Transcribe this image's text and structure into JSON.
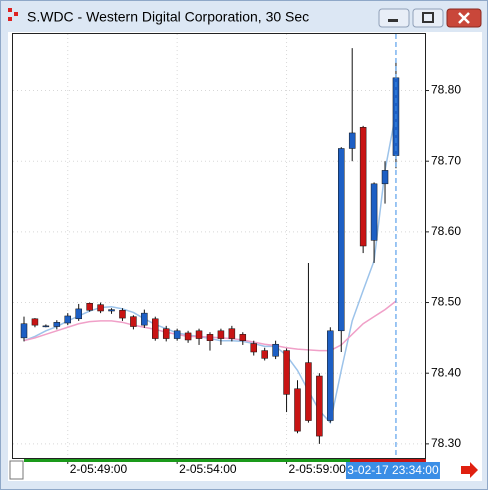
{
  "window_title": "S.WDC - Western Digital Corporation, 30 Sec",
  "chart_data": {
    "type": "candlestick",
    "categories": [
      null,
      null,
      null,
      null,
      "2-05:49:00",
      null,
      null,
      null,
      null,
      null,
      null,
      null,
      null,
      null,
      "2-05:54:00",
      null,
      null,
      null,
      null,
      null,
      null,
      null,
      null,
      null,
      "2-05:59:00",
      null,
      null,
      null,
      null,
      null,
      null,
      null,
      null,
      null,
      "3-02-17 23:34:00"
    ],
    "open": [
      78.45,
      78.477,
      78.467,
      78.466,
      78.471,
      78.477,
      78.499,
      78.497,
      78.488,
      78.489,
      78.48,
      78.468,
      78.477,
      78.463,
      78.449,
      78.457,
      78.46,
      78.455,
      78.46,
      78.463,
      78.455,
      78.442,
      78.432,
      78.424,
      78.432,
      78.378,
      78.415,
      78.396,
      78.333,
      78.46,
      78.718,
      78.748,
      78.588,
      78.668,
      78.708
    ],
    "high": [
      78.48,
      78.478,
      78.469,
      78.475,
      78.485,
      78.498,
      78.5,
      78.5,
      78.492,
      78.492,
      78.482,
      78.49,
      78.48,
      78.467,
      78.463,
      78.46,
      78.463,
      78.458,
      78.463,
      78.467,
      78.458,
      78.446,
      78.436,
      78.446,
      78.435,
      78.39,
      78.556,
      78.4,
      78.465,
      78.72,
      78.86,
      78.75,
      78.67,
      78.7,
      78.84
    ],
    "low": [
      78.445,
      78.465,
      78.465,
      78.462,
      78.468,
      78.474,
      78.487,
      78.485,
      78.484,
      78.474,
      78.462,
      78.464,
      78.446,
      78.445,
      78.446,
      78.443,
      78.44,
      78.432,
      78.44,
      78.445,
      78.44,
      78.425,
      78.418,
      78.42,
      78.345,
      78.315,
      78.33,
      78.3,
      78.33,
      78.43,
      78.7,
      78.57,
      78.556,
      78.64,
      78.69
    ],
    "close": [
      78.47,
      78.468,
      78.467,
      78.472,
      78.481,
      78.491,
      78.489,
      78.488,
      78.49,
      78.478,
      78.466,
      78.485,
      78.449,
      78.449,
      78.46,
      78.447,
      78.449,
      78.446,
      78.449,
      78.449,
      78.446,
      78.43,
      78.421,
      78.441,
      78.37,
      78.318,
      78.333,
      78.311,
      78.46,
      78.718,
      78.74,
      78.58,
      78.668,
      78.687,
      78.818
    ],
    "up_color": "#1d5fc4",
    "down_color": "#c81414",
    "overlays": [
      {
        "color": "#9cc3ea",
        "values": [
          78.446,
          78.452,
          78.46,
          78.466,
          78.474,
          78.481,
          78.488,
          78.493,
          78.494,
          78.491,
          78.486,
          78.477,
          78.469,
          78.463,
          78.457,
          78.454,
          78.452,
          78.449,
          78.446,
          78.446,
          78.445,
          78.442,
          78.438,
          78.438,
          78.425,
          78.404,
          78.375,
          78.347,
          78.33,
          78.404,
          78.474,
          78.517,
          78.559,
          78.687,
          78.769
        ]
      },
      {
        "color": "#f0a0c8",
        "values": [
          78.446,
          78.45,
          78.455,
          78.46,
          78.465,
          78.47,
          78.473,
          78.474,
          78.474,
          78.472,
          78.468,
          78.465,
          78.462,
          78.458,
          78.455,
          78.452,
          78.452,
          78.451,
          78.45,
          78.449,
          78.447,
          78.444,
          78.441,
          78.439,
          78.436,
          78.434,
          78.433,
          78.432,
          78.432,
          78.44,
          78.455,
          78.47,
          78.48,
          78.49,
          78.502
        ]
      }
    ],
    "ylim": [
      78.28,
      78.88
    ],
    "yticks": [
      {
        "value": 78.3,
        "label": "78.30"
      },
      {
        "value": 78.4,
        "label": "78.40"
      },
      {
        "value": 78.5,
        "label": "78.50"
      },
      {
        "value": 78.6,
        "label": "78.60"
      },
      {
        "value": 78.7,
        "label": "78.70"
      },
      {
        "value": 78.8,
        "label": "78.80"
      }
    ],
    "grid": true,
    "crosshair": true
  }
}
